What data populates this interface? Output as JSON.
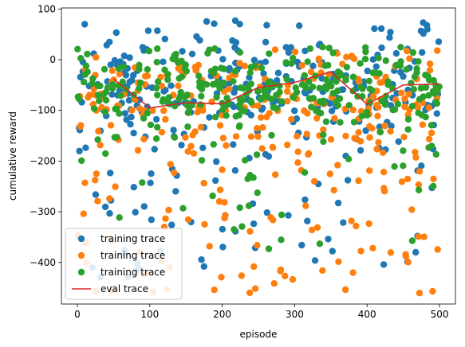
{
  "chart_data": {
    "type": "scatter",
    "title": "",
    "xlabel": "episode",
    "ylabel": "cumulative reward",
    "xlim": [
      -22,
      522
    ],
    "ylim": [
      -482,
      102
    ],
    "xticks": [
      0,
      100,
      200,
      300,
      400,
      500
    ],
    "yticks": [
      100,
      0,
      -100,
      -200,
      -300,
      -400
    ],
    "grid": false,
    "legend": "lower-left",
    "series": [
      {
        "name": "training trace",
        "kind": "scatter",
        "color": "#1f77b4",
        "seed": 11,
        "count": 300,
        "distribution": {
          "center": -45,
          "spread": 60,
          "low_tail": 0.18,
          "y_min": -430,
          "y_max": 78
        }
      },
      {
        "name": "training trace",
        "kind": "scatter",
        "color": "#ff7f0e",
        "seed": 23,
        "count": 300,
        "distribution": {
          "center": -85,
          "spread": 55,
          "low_tail": 0.28,
          "y_min": -462,
          "y_max": 20
        }
      },
      {
        "name": "training trace",
        "kind": "scatter",
        "color": "#2ca02c",
        "seed": 37,
        "count": 320,
        "distribution": {
          "center": -55,
          "spread": 40,
          "low_tail": 0.12,
          "y_min": -375,
          "y_max": 25
        }
      },
      {
        "name": "eval trace",
        "kind": "line",
        "color": "#d62728",
        "x": [
          50,
          100,
          150,
          200,
          250,
          300,
          350,
          400,
          450,
          500
        ],
        "y": [
          -38,
          -95,
          -85,
          -87,
          -55,
          -45,
          -24,
          -88,
          -50,
          -48
        ]
      }
    ]
  }
}
